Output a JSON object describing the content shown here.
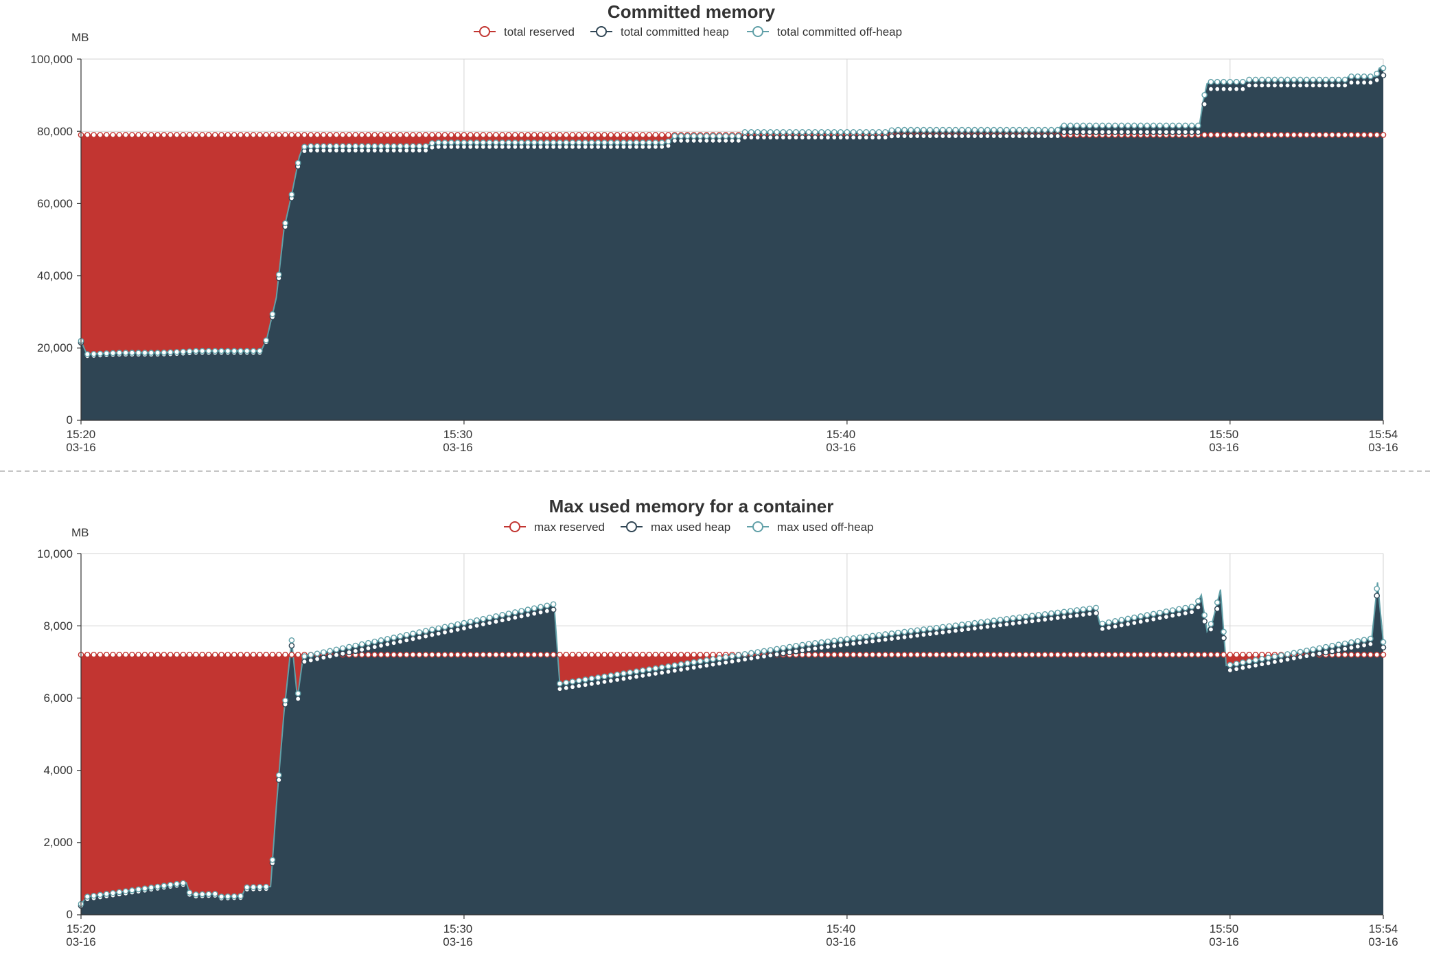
{
  "colors": {
    "reserved": "#c23531",
    "heap": "#2f4554",
    "offheap": "#61a0a8"
  },
  "chart_data": [
    {
      "type": "area",
      "title": "Committed memory",
      "ylabel": "MB",
      "ylim": [
        0,
        100000
      ],
      "yticks": [
        0,
        20000,
        40000,
        60000,
        80000,
        100000
      ],
      "ytick_labels": [
        "0",
        "20,000",
        "40,000",
        "60,000",
        "80,000",
        "100,000"
      ],
      "xlim": [
        0,
        34
      ],
      "xticks": [
        0,
        10,
        20,
        30,
        34
      ],
      "xtick_labels": [
        [
          "15:20",
          "03-16"
        ],
        [
          "15:30",
          "03-16"
        ],
        [
          "15:40",
          "03-16"
        ],
        [
          "15:50",
          "03-16"
        ],
        [
          "15:54",
          "03-16"
        ]
      ],
      "x_unit": "minutes after 15:20",
      "legend": [
        "total reserved",
        "total committed heap",
        "total committed off-heap"
      ],
      "series": [
        {
          "name": "total reserved",
          "points": [
            [
              0,
              79000
            ],
            [
              34,
              79000
            ]
          ]
        },
        {
          "name": "total committed heap",
          "points": [
            [
              0,
              21500
            ],
            [
              0.15,
              17800
            ],
            [
              1,
              18200
            ],
            [
              2,
              18200
            ],
            [
              2.5,
              18400
            ],
            [
              3,
              18700
            ],
            [
              4.7,
              18700
            ],
            [
              4.85,
              22000
            ],
            [
              5.1,
              33000
            ],
            [
              5.3,
              52000
            ],
            [
              5.5,
              61500
            ],
            [
              5.7,
              72000
            ],
            [
              5.8,
              74500
            ],
            [
              6,
              74700
            ],
            [
              9,
              74700
            ],
            [
              9.2,
              75700
            ],
            [
              15.3,
              75700
            ],
            [
              15.5,
              77400
            ],
            [
              17.2,
              77400
            ],
            [
              17.3,
              78300
            ],
            [
              21,
              78300
            ],
            [
              21.2,
              78700
            ],
            [
              25.5,
              78700
            ],
            [
              25.6,
              79800
            ],
            [
              29.2,
              79800
            ],
            [
              29.3,
              86000
            ],
            [
              29.4,
              90500
            ],
            [
              29.5,
              91700
            ],
            [
              30.4,
              91700
            ],
            [
              30.5,
              92700
            ],
            [
              33,
              92700
            ],
            [
              33.1,
              93500
            ],
            [
              33.8,
              93500
            ],
            [
              33.9,
              95500
            ],
            [
              34,
              95500
            ]
          ]
        },
        {
          "name": "total committed off-heap",
          "points": [
            [
              0,
              22000
            ],
            [
              0.15,
              18300
            ],
            [
              1,
              18700
            ],
            [
              2,
              18700
            ],
            [
              2.5,
              18900
            ],
            [
              3,
              19200
            ],
            [
              4.7,
              19200
            ],
            [
              4.85,
              22500
            ],
            [
              5.1,
              34000
            ],
            [
              5.3,
              53000
            ],
            [
              5.5,
              62500
            ],
            [
              5.7,
              73000
            ],
            [
              5.8,
              75700
            ],
            [
              6,
              75900
            ],
            [
              9,
              75900
            ],
            [
              9.2,
              76900
            ],
            [
              15.3,
              76900
            ],
            [
              15.5,
              78700
            ],
            [
              17.2,
              78700
            ],
            [
              17.3,
              79800
            ],
            [
              21,
              79800
            ],
            [
              21.2,
              80400
            ],
            [
              25.5,
              80400
            ],
            [
              25.6,
              81600
            ],
            [
              29.2,
              81600
            ],
            [
              29.3,
              88500
            ],
            [
              29.4,
              93200
            ],
            [
              29.5,
              93700
            ],
            [
              30.4,
              93700
            ],
            [
              30.5,
              94300
            ],
            [
              33,
              94300
            ],
            [
              33.1,
              95200
            ],
            [
              33.8,
              95200
            ],
            [
              33.9,
              97500
            ],
            [
              34,
              97500
            ]
          ]
        }
      ]
    },
    {
      "type": "area",
      "title": "Max used memory for a container",
      "ylabel": "MB",
      "ylim": [
        0,
        10000
      ],
      "yticks": [
        0,
        2000,
        4000,
        6000,
        8000,
        10000
      ],
      "ytick_labels": [
        "0",
        "2,000",
        "4,000",
        "6,000",
        "8,000",
        "10,000"
      ],
      "xlim": [
        0,
        34
      ],
      "xticks": [
        0,
        10,
        20,
        30,
        34
      ],
      "xtick_labels": [
        [
          "15:20",
          "03-16"
        ],
        [
          "15:30",
          "03-16"
        ],
        [
          "15:40",
          "03-16"
        ],
        [
          "15:50",
          "03-16"
        ],
        [
          "15:54",
          "03-16"
        ]
      ],
      "x_unit": "minutes after 15:20",
      "legend": [
        "max reserved",
        "max used heap",
        "max used off-heap"
      ],
      "series": [
        {
          "name": "max reserved",
          "points": [
            [
              0,
              7200
            ],
            [
              34,
              7200
            ]
          ]
        },
        {
          "name": "max used heap",
          "points": [
            [
              0,
              250
            ],
            [
              0.15,
              430
            ],
            [
              2.6,
              820
            ],
            [
              2.75,
              840
            ],
            [
              2.85,
              500
            ],
            [
              3.5,
              530
            ],
            [
              3.6,
              450
            ],
            [
              4.2,
              470
            ],
            [
              4.3,
              700
            ],
            [
              4.95,
              720
            ],
            [
              5.1,
              2850
            ],
            [
              5.3,
              5500
            ],
            [
              5.5,
              7450
            ],
            [
              5.65,
              5850
            ],
            [
              5.8,
              7000
            ],
            [
              12.35,
              8450
            ],
            [
              12.5,
              6250
            ],
            [
              19,
              7350
            ],
            [
              26.5,
              8350
            ],
            [
              26.6,
              7900
            ],
            [
              29.1,
              8400
            ],
            [
              29.25,
              8650
            ],
            [
              29.4,
              7700
            ],
            [
              29.55,
              8000
            ],
            [
              29.75,
              8800
            ],
            [
              29.9,
              6750
            ],
            [
              33.7,
              7500
            ],
            [
              33.85,
              9000
            ],
            [
              34,
              7400
            ]
          ]
        },
        {
          "name": "max used off-heap",
          "points": [
            [
              0,
              300
            ],
            [
              0.15,
              500
            ],
            [
              2.6,
              870
            ],
            [
              2.75,
              890
            ],
            [
              2.85,
              560
            ],
            [
              3.5,
              580
            ],
            [
              3.6,
              500
            ],
            [
              4.2,
              520
            ],
            [
              4.3,
              760
            ],
            [
              4.95,
              780
            ],
            [
              5.1,
              3000
            ],
            [
              5.3,
              5600
            ],
            [
              5.5,
              7600
            ],
            [
              5.65,
              6000
            ],
            [
              5.8,
              7150
            ],
            [
              12.35,
              8600
            ],
            [
              12.5,
              6400
            ],
            [
              19,
              7500
            ],
            [
              26.5,
              8500
            ],
            [
              26.6,
              8050
            ],
            [
              29.1,
              8550
            ],
            [
              29.25,
              8850
            ],
            [
              29.4,
              7850
            ],
            [
              29.55,
              8150
            ],
            [
              29.75,
              9000
            ],
            [
              29.9,
              6900
            ],
            [
              33.7,
              7650
            ],
            [
              33.85,
              9200
            ],
            [
              34,
              7550
            ]
          ]
        }
      ]
    }
  ]
}
